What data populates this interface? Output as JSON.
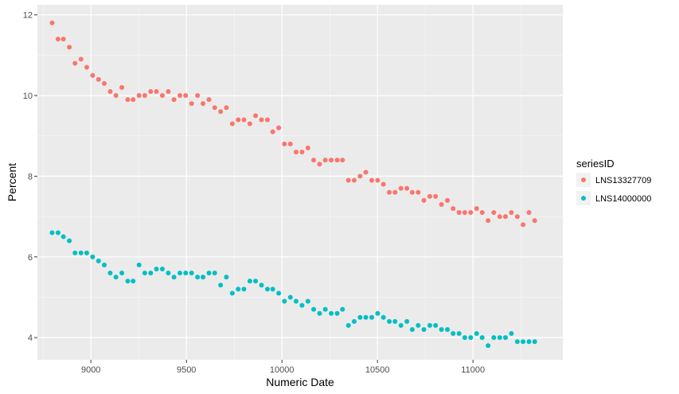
{
  "chart_data": {
    "type": "scatter",
    "xlabel": "Numeric Date",
    "ylabel": "Percent",
    "xlim": [
      8720,
      11470
    ],
    "ylim": [
      3.45,
      12.25
    ],
    "x_ticks": [
      9000,
      9500,
      10000,
      10500,
      11000
    ],
    "y_ticks": [
      4,
      6,
      8,
      10,
      12
    ],
    "x_tick_labels": [
      "9000",
      "9500",
      "10000",
      "10500",
      "11000"
    ],
    "y_tick_labels": [
      "4",
      "6",
      "8",
      "10",
      "12"
    ],
    "grid": true,
    "legend": {
      "title": "seriesID",
      "position": "right"
    },
    "series": [
      {
        "name": "LNS13327709",
        "color": "#F8766D",
        "points": [
          [
            8797,
            11.8
          ],
          [
            8828,
            11.4
          ],
          [
            8856,
            11.4
          ],
          [
            8887,
            11.2
          ],
          [
            8917,
            10.8
          ],
          [
            8948,
            10.9
          ],
          [
            8978,
            10.7
          ],
          [
            9009,
            10.5
          ],
          [
            9040,
            10.4
          ],
          [
            9070,
            10.3
          ],
          [
            9101,
            10.1
          ],
          [
            9131,
            10.0
          ],
          [
            9162,
            10.2
          ],
          [
            9193,
            9.9
          ],
          [
            9221,
            9.9
          ],
          [
            9252,
            10.0
          ],
          [
            9282,
            10.0
          ],
          [
            9313,
            10.1
          ],
          [
            9343,
            10.1
          ],
          [
            9374,
            10.0
          ],
          [
            9405,
            10.1
          ],
          [
            9435,
            9.9
          ],
          [
            9466,
            10.0
          ],
          [
            9496,
            10.0
          ],
          [
            9527,
            9.8
          ],
          [
            9558,
            10.0
          ],
          [
            9587,
            9.8
          ],
          [
            9618,
            9.9
          ],
          [
            9648,
            9.7
          ],
          [
            9679,
            9.6
          ],
          [
            9709,
            9.7
          ],
          [
            9740,
            9.3
          ],
          [
            9771,
            9.4
          ],
          [
            9801,
            9.4
          ],
          [
            9832,
            9.3
          ],
          [
            9862,
            9.5
          ],
          [
            9893,
            9.4
          ],
          [
            9924,
            9.4
          ],
          [
            9952,
            9.1
          ],
          [
            9983,
            9.2
          ],
          [
            10013,
            8.8
          ],
          [
            10044,
            8.8
          ],
          [
            10074,
            8.6
          ],
          [
            10105,
            8.6
          ],
          [
            10136,
            8.7
          ],
          [
            10166,
            8.4
          ],
          [
            10197,
            8.3
          ],
          [
            10227,
            8.4
          ],
          [
            10258,
            8.4
          ],
          [
            10289,
            8.4
          ],
          [
            10317,
            8.4
          ],
          [
            10348,
            7.9
          ],
          [
            10378,
            7.9
          ],
          [
            10409,
            8.0
          ],
          [
            10439,
            8.1
          ],
          [
            10470,
            7.9
          ],
          [
            10501,
            7.9
          ],
          [
            10531,
            7.8
          ],
          [
            10562,
            7.6
          ],
          [
            10592,
            7.6
          ],
          [
            10623,
            7.7
          ],
          [
            10654,
            7.7
          ],
          [
            10682,
            7.6
          ],
          [
            10713,
            7.6
          ],
          [
            10743,
            7.4
          ],
          [
            10774,
            7.5
          ],
          [
            10804,
            7.5
          ],
          [
            10835,
            7.3
          ],
          [
            10866,
            7.4
          ],
          [
            10896,
            7.2
          ],
          [
            10927,
            7.1
          ],
          [
            10957,
            7.1
          ],
          [
            10988,
            7.1
          ],
          [
            11019,
            7.2
          ],
          [
            11048,
            7.1
          ],
          [
            11079,
            6.9
          ],
          [
            11109,
            7.1
          ],
          [
            11140,
            7.0
          ],
          [
            11170,
            7.0
          ],
          [
            11201,
            7.1
          ],
          [
            11232,
            7.0
          ],
          [
            11262,
            6.8
          ],
          [
            11293,
            7.1
          ],
          [
            11323,
            6.9
          ]
        ]
      },
      {
        "name": "LNS14000000",
        "color": "#00BFC4",
        "points": [
          [
            8797,
            6.6
          ],
          [
            8828,
            6.6
          ],
          [
            8856,
            6.5
          ],
          [
            8887,
            6.4
          ],
          [
            8917,
            6.1
          ],
          [
            8948,
            6.1
          ],
          [
            8978,
            6.1
          ],
          [
            9009,
            6.0
          ],
          [
            9040,
            5.9
          ],
          [
            9070,
            5.8
          ],
          [
            9101,
            5.6
          ],
          [
            9131,
            5.5
          ],
          [
            9162,
            5.6
          ],
          [
            9193,
            5.4
          ],
          [
            9221,
            5.4
          ],
          [
            9252,
            5.8
          ],
          [
            9282,
            5.6
          ],
          [
            9313,
            5.6
          ],
          [
            9343,
            5.7
          ],
          [
            9374,
            5.7
          ],
          [
            9405,
            5.6
          ],
          [
            9435,
            5.5
          ],
          [
            9466,
            5.6
          ],
          [
            9496,
            5.6
          ],
          [
            9527,
            5.6
          ],
          [
            9558,
            5.5
          ],
          [
            9587,
            5.5
          ],
          [
            9618,
            5.6
          ],
          [
            9648,
            5.6
          ],
          [
            9679,
            5.3
          ],
          [
            9709,
            5.5
          ],
          [
            9740,
            5.1
          ],
          [
            9771,
            5.2
          ],
          [
            9801,
            5.2
          ],
          [
            9832,
            5.4
          ],
          [
            9862,
            5.4
          ],
          [
            9893,
            5.3
          ],
          [
            9924,
            5.2
          ],
          [
            9952,
            5.2
          ],
          [
            9983,
            5.1
          ],
          [
            10013,
            4.9
          ],
          [
            10044,
            5.0
          ],
          [
            10074,
            4.9
          ],
          [
            10105,
            4.8
          ],
          [
            10136,
            4.9
          ],
          [
            10166,
            4.7
          ],
          [
            10197,
            4.6
          ],
          [
            10227,
            4.7
          ],
          [
            10258,
            4.6
          ],
          [
            10289,
            4.6
          ],
          [
            10317,
            4.7
          ],
          [
            10348,
            4.3
          ],
          [
            10378,
            4.4
          ],
          [
            10409,
            4.5
          ],
          [
            10439,
            4.5
          ],
          [
            10470,
            4.5
          ],
          [
            10501,
            4.6
          ],
          [
            10531,
            4.5
          ],
          [
            10562,
            4.4
          ],
          [
            10592,
            4.4
          ],
          [
            10623,
            4.3
          ],
          [
            10654,
            4.4
          ],
          [
            10682,
            4.2
          ],
          [
            10713,
            4.3
          ],
          [
            10743,
            4.2
          ],
          [
            10774,
            4.3
          ],
          [
            10804,
            4.3
          ],
          [
            10835,
            4.2
          ],
          [
            10866,
            4.2
          ],
          [
            10896,
            4.1
          ],
          [
            10927,
            4.1
          ],
          [
            10957,
            4.0
          ],
          [
            10988,
            4.0
          ],
          [
            11019,
            4.1
          ],
          [
            11048,
            4.0
          ],
          [
            11079,
            3.8
          ],
          [
            11109,
            4.0
          ],
          [
            11140,
            4.0
          ],
          [
            11170,
            4.0
          ],
          [
            11201,
            4.1
          ],
          [
            11232,
            3.9
          ],
          [
            11262,
            3.9
          ],
          [
            11293,
            3.9
          ],
          [
            11323,
            3.9
          ]
        ]
      }
    ]
  }
}
